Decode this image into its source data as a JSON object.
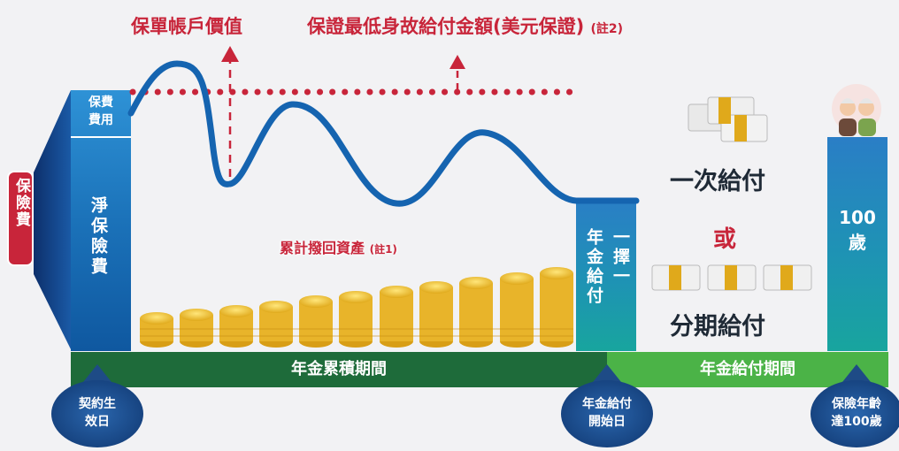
{
  "top_labels": {
    "account_value": "保單帳戶價值",
    "min_death_benefit": "保證最低身故給付金額(美元保證)",
    "note2": "(註2)"
  },
  "left": {
    "premium": "保險費",
    "premium_fee": "保費費用",
    "net_premium": "淨保險費"
  },
  "middle": {
    "accumulated_assets": "累計撥回資產",
    "note1": "(註1)"
  },
  "annuity_box": {
    "annuity_payout": "年金給付",
    "choose_one": "一擇一"
  },
  "right": {
    "lump_sum": "一次給付",
    "or": "或",
    "installment": "分期給付",
    "age_100": "100歲"
  },
  "timeline": {
    "accumulation_period": "年金累積期間",
    "payout_period": "年金給付期間"
  },
  "pins": {
    "contract_effective": "契約生效日",
    "payout_start": "年金給付開始日",
    "insured_age_100": "保險年齡達100歲"
  },
  "colors": {
    "accent_red": "#c8253a",
    "curve_blue": "#1564b0",
    "dark_green": "#1e6b3a",
    "light_green": "#4bb347",
    "pin_navy": "#1e4b86"
  }
}
